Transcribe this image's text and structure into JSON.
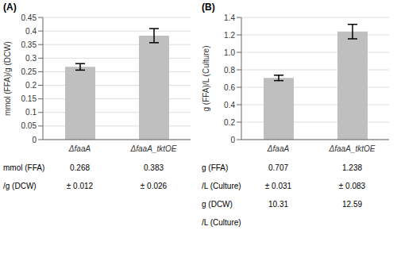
{
  "chart_data": [
    {
      "type": "bar",
      "title": "(A)",
      "categories": [
        "ΔfaaA",
        "ΔfaaA_tktOE"
      ],
      "values": [
        0.268,
        0.383
      ],
      "errors": [
        0.012,
        0.026
      ],
      "color": "#c0bfbf",
      "ylabel": "mmol (FFA)/g (DCW)",
      "ylim": [
        0,
        0.45
      ],
      "yticks": [
        0,
        0.05,
        0.1,
        0.15,
        0.2,
        0.25,
        0.3,
        0.35,
        0.4,
        0.45
      ],
      "grid": true,
      "annotations": [
        [
          "mmol (FFA)",
          "0.268",
          "0.383"
        ],
        [
          "/g (DCW)",
          "± 0.012",
          "± 0.026"
        ]
      ]
    },
    {
      "type": "bar",
      "title": "(B)",
      "categories": [
        "ΔfaaA",
        "ΔfaaA_tktOE"
      ],
      "values": [
        0.707,
        1.238
      ],
      "errors": [
        0.031,
        0.083
      ],
      "color": "#c0bfbf",
      "ylabel": "g (FFA)/L (Culture)",
      "ylim": [
        0,
        1.4
      ],
      "yticks": [
        0,
        0.2,
        0.4,
        0.6,
        0.8,
        {
          "value": 1.0,
          "label": "1.0"
        },
        1.2,
        1.4
      ],
      "grid": true,
      "annotations": [
        [
          "g (FFA)",
          "0.707",
          "1.238"
        ],
        [
          "/L (Culture)",
          "± 0.031",
          "± 0.083"
        ],
        [
          "g (DCW)",
          "10.31",
          "12.59"
        ],
        [
          "/L (Culture)"
        ]
      ]
    }
  ]
}
